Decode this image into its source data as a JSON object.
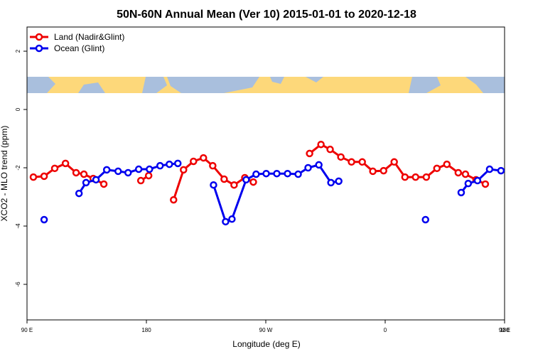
{
  "chart_data": {
    "type": "line",
    "title": "50N-60N Annual Mean (Ver 10)   2015-01-01 to 2020-12-18",
    "x_label": "Longitude (deg E)",
    "y_label": "XCO2 - MLO trend (ppm)",
    "xlim": [
      90,
      450
    ],
    "ylim": [
      -7.22,
      2.83
    ],
    "xticks": [
      {
        "value": 90,
        "label": "90 E"
      },
      180,
      {
        "value": 270,
        "label": "90 W"
      },
      {
        "value": 360,
        "label": "0"
      },
      {
        "value": 450,
        "label": "90 E"
      },
      {
        "value": 540,
        "label": "180"
      }
    ],
    "yticks": [
      2,
      0,
      -2,
      -4,
      -6
    ],
    "legend": "top-left",
    "series": [
      {
        "name": "Land (Nadir&Glint)",
        "color": "#ee0000",
        "x": [
          94.8,
          102.9,
          110.9,
          119,
          127,
          132.9,
          139.9,
          147.9,
          null,
          175.8,
          181.7,
          null,
          200.5,
          208,
          215.5,
          223,
          230,
          238.6,
          246.1,
          254.2,
          260.6,
          null,
          303,
          311.6,
          318.5,
          326.6,
          334.6,
          342.7,
          350.7,
          358.8,
          366.8,
          374.9,
          382.9,
          391,
          399,
          406.5,
          415.1,
          420.5,
          428.5,
          435.5
        ],
        "values": [
          -2.32,
          -2.29,
          -2.02,
          -1.85,
          -2.17,
          -2.22,
          -2.37,
          -2.56,
          null,
          -2.44,
          -2.27,
          null,
          -3.1,
          -2.07,
          -1.78,
          -1.66,
          -1.93,
          -2.39,
          -2.59,
          -2.34,
          -2.49,
          null,
          -1.51,
          -1.2,
          -1.37,
          -1.63,
          -1.8,
          -1.8,
          -2.12,
          -2.1,
          -1.8,
          -2.32,
          -2.32,
          -2.32,
          -2.02,
          -1.88,
          -2.17,
          -2.22,
          -2.41,
          -2.56
        ]
      },
      {
        "name": "Ocean (Glint)",
        "color": "#0000ee",
        "x": [
          102.9,
          null,
          129.2,
          134.5,
          142,
          150.1,
          158.7,
          166.2,
          174.2,
          182.3,
          190.3,
          197.3,
          203.7,
          null,
          230.6,
          239.7,
          244.5,
          255.2,
          262.7,
          270.3,
          278.3,
          286.4,
          294.4,
          301.9,
          310,
          319.1,
          325,
          null,
          390.4,
          null,
          417.3,
          422.6,
          429.6,
          438.7,
          447.3
        ],
        "values": [
          -3.78,
          null,
          -2.88,
          -2.51,
          -2.41,
          -2.07,
          -2.12,
          -2.17,
          -2.05,
          -2.05,
          -1.93,
          -1.88,
          -1.85,
          null,
          -2.59,
          -3.85,
          -3.76,
          -2.41,
          -2.22,
          -2.2,
          -2.2,
          -2.2,
          -2.22,
          -2.0,
          -1.9,
          -2.51,
          -2.46,
          null,
          -3.78,
          null,
          -2.85,
          -2.54,
          -2.44,
          -2.05,
          -2.1
        ]
      }
    ]
  }
}
